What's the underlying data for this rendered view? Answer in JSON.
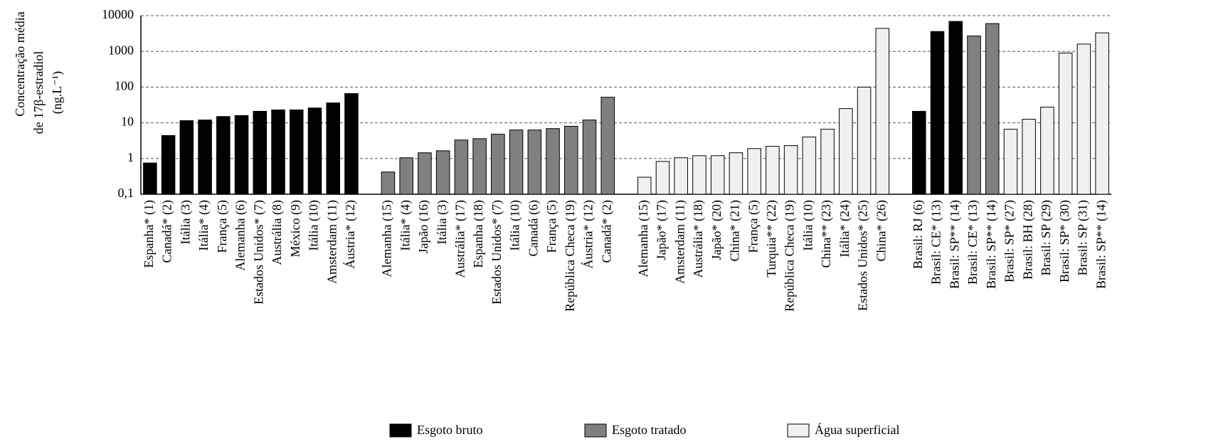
{
  "chart_data": {
    "type": "bar",
    "log_scale": true,
    "grid": true,
    "legend": "bottom",
    "ylabel": [
      "Concentração média",
      "de 17β-estradiol",
      "(ng.L⁻¹)"
    ],
    "ylim": [
      0.1,
      10000
    ],
    "yticks": [
      {
        "value": 0.1,
        "label": "0,1"
      },
      1,
      10,
      100,
      1000,
      10000
    ],
    "categories": [
      "Espanha* (1)",
      "Canadá* (2)",
      "Itália (3)",
      "Itália* (4)",
      "França (5)",
      "Alemanha (6)",
      "Estados Unidos* (7)",
      "Austrália (8)",
      "México (9)",
      "Itália (10)",
      "Amsterdam (11)",
      "Áustria* (12)",
      null,
      "Alemanha (15)",
      "Itália* (4)",
      "Japão (16)",
      "Itália (3)",
      "Austrália* (17)",
      "Espanha (18)",
      "Estados Unidos* (7)",
      "Itália (10)",
      "Canadá (6)",
      "França (5)",
      "República Checa (19)",
      "Áustria* (12)",
      "Canadá* (2)",
      null,
      "Alemanha (15)",
      "Japão* (17)",
      "Amsterdam (11)",
      "Austrália* (18)",
      "Japão* (20)",
      "China* (21)",
      "França (5)",
      "Turquia** (22)",
      "República Checa (19)",
      "Itália (10)",
      "China** (23)",
      "Itália* (24)",
      "Estados Unidos* (25)",
      "China* (26)",
      null,
      "Brasil: RJ (6)",
      "Brasil: CE* (13)",
      "Brasil: SP** (14)",
      "Brasil: CE* (13)",
      "Brasil: SP** (14)",
      "Brasil: SP* (27)",
      "Brasil: BH (28)",
      "Brasil: SP (29)",
      "Brasil: SP* (30)",
      "Brasil: SP (31)",
      "Brasil: SP** (14)"
    ],
    "series": [
      {
        "name": "Esgoto bruto",
        "color": "#000000",
        "values": [
          0.75,
          4.4,
          11.5,
          12,
          15,
          16,
          21,
          23,
          23,
          26,
          36,
          66,
          null,
          null,
          null,
          null,
          null,
          null,
          null,
          null,
          null,
          null,
          null,
          null,
          null,
          null,
          null,
          null,
          null,
          null,
          null,
          null,
          null,
          null,
          null,
          null,
          null,
          null,
          null,
          null,
          null,
          null,
          21,
          3600,
          6900,
          null,
          null,
          null,
          null,
          null,
          null,
          null,
          null
        ]
      },
      {
        "name": "Esgoto tratado",
        "color": "#808080",
        "values": [
          null,
          null,
          null,
          null,
          null,
          null,
          null,
          null,
          null,
          null,
          null,
          null,
          null,
          0.42,
          1.05,
          1.45,
          1.65,
          3.3,
          3.6,
          4.8,
          6.3,
          6.3,
          6.9,
          8,
          12,
          52,
          null,
          null,
          null,
          null,
          null,
          null,
          null,
          null,
          null,
          null,
          null,
          null,
          null,
          null,
          null,
          null,
          null,
          null,
          null,
          2700,
          6000,
          null,
          null,
          null,
          null,
          null,
          null
        ]
      },
      {
        "name": "Água superficial",
        "color": "#f0f0f0",
        "values": [
          null,
          null,
          null,
          null,
          null,
          null,
          null,
          null,
          null,
          null,
          null,
          null,
          null,
          null,
          null,
          null,
          null,
          null,
          null,
          null,
          null,
          null,
          null,
          null,
          null,
          null,
          null,
          0.3,
          0.83,
          1.05,
          1.2,
          1.2,
          1.45,
          1.9,
          2.2,
          2.3,
          4,
          6.6,
          25,
          100,
          4400,
          null,
          null,
          null,
          null,
          null,
          null,
          6.6,
          12.6,
          27.5,
          900,
          1600,
          3300
        ]
      }
    ]
  }
}
